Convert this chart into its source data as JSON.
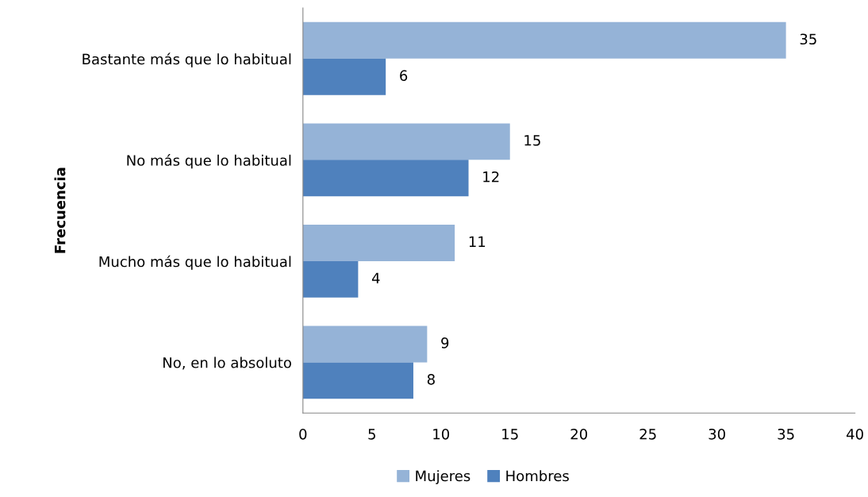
{
  "chart_data": {
    "type": "bar",
    "orientation": "horizontal",
    "ylabel": "Frecuencia",
    "categories": [
      "Bastante más que lo habitual",
      "No más que lo habitual",
      "Mucho más que lo habitual",
      "No, en lo absoluto"
    ],
    "series": [
      {
        "name": "Mujeres",
        "color": "#95b3d7",
        "values": [
          35,
          15,
          11,
          9
        ]
      },
      {
        "name": "Hombres",
        "color": "#4f81bd",
        "values": [
          6,
          12,
          4,
          8
        ]
      }
    ],
    "xlim": [
      0,
      40
    ],
    "xticks": [
      0,
      5,
      10,
      15,
      20,
      25,
      30,
      35,
      40
    ],
    "data_labels": true,
    "grid": false,
    "legend": "bottom"
  }
}
